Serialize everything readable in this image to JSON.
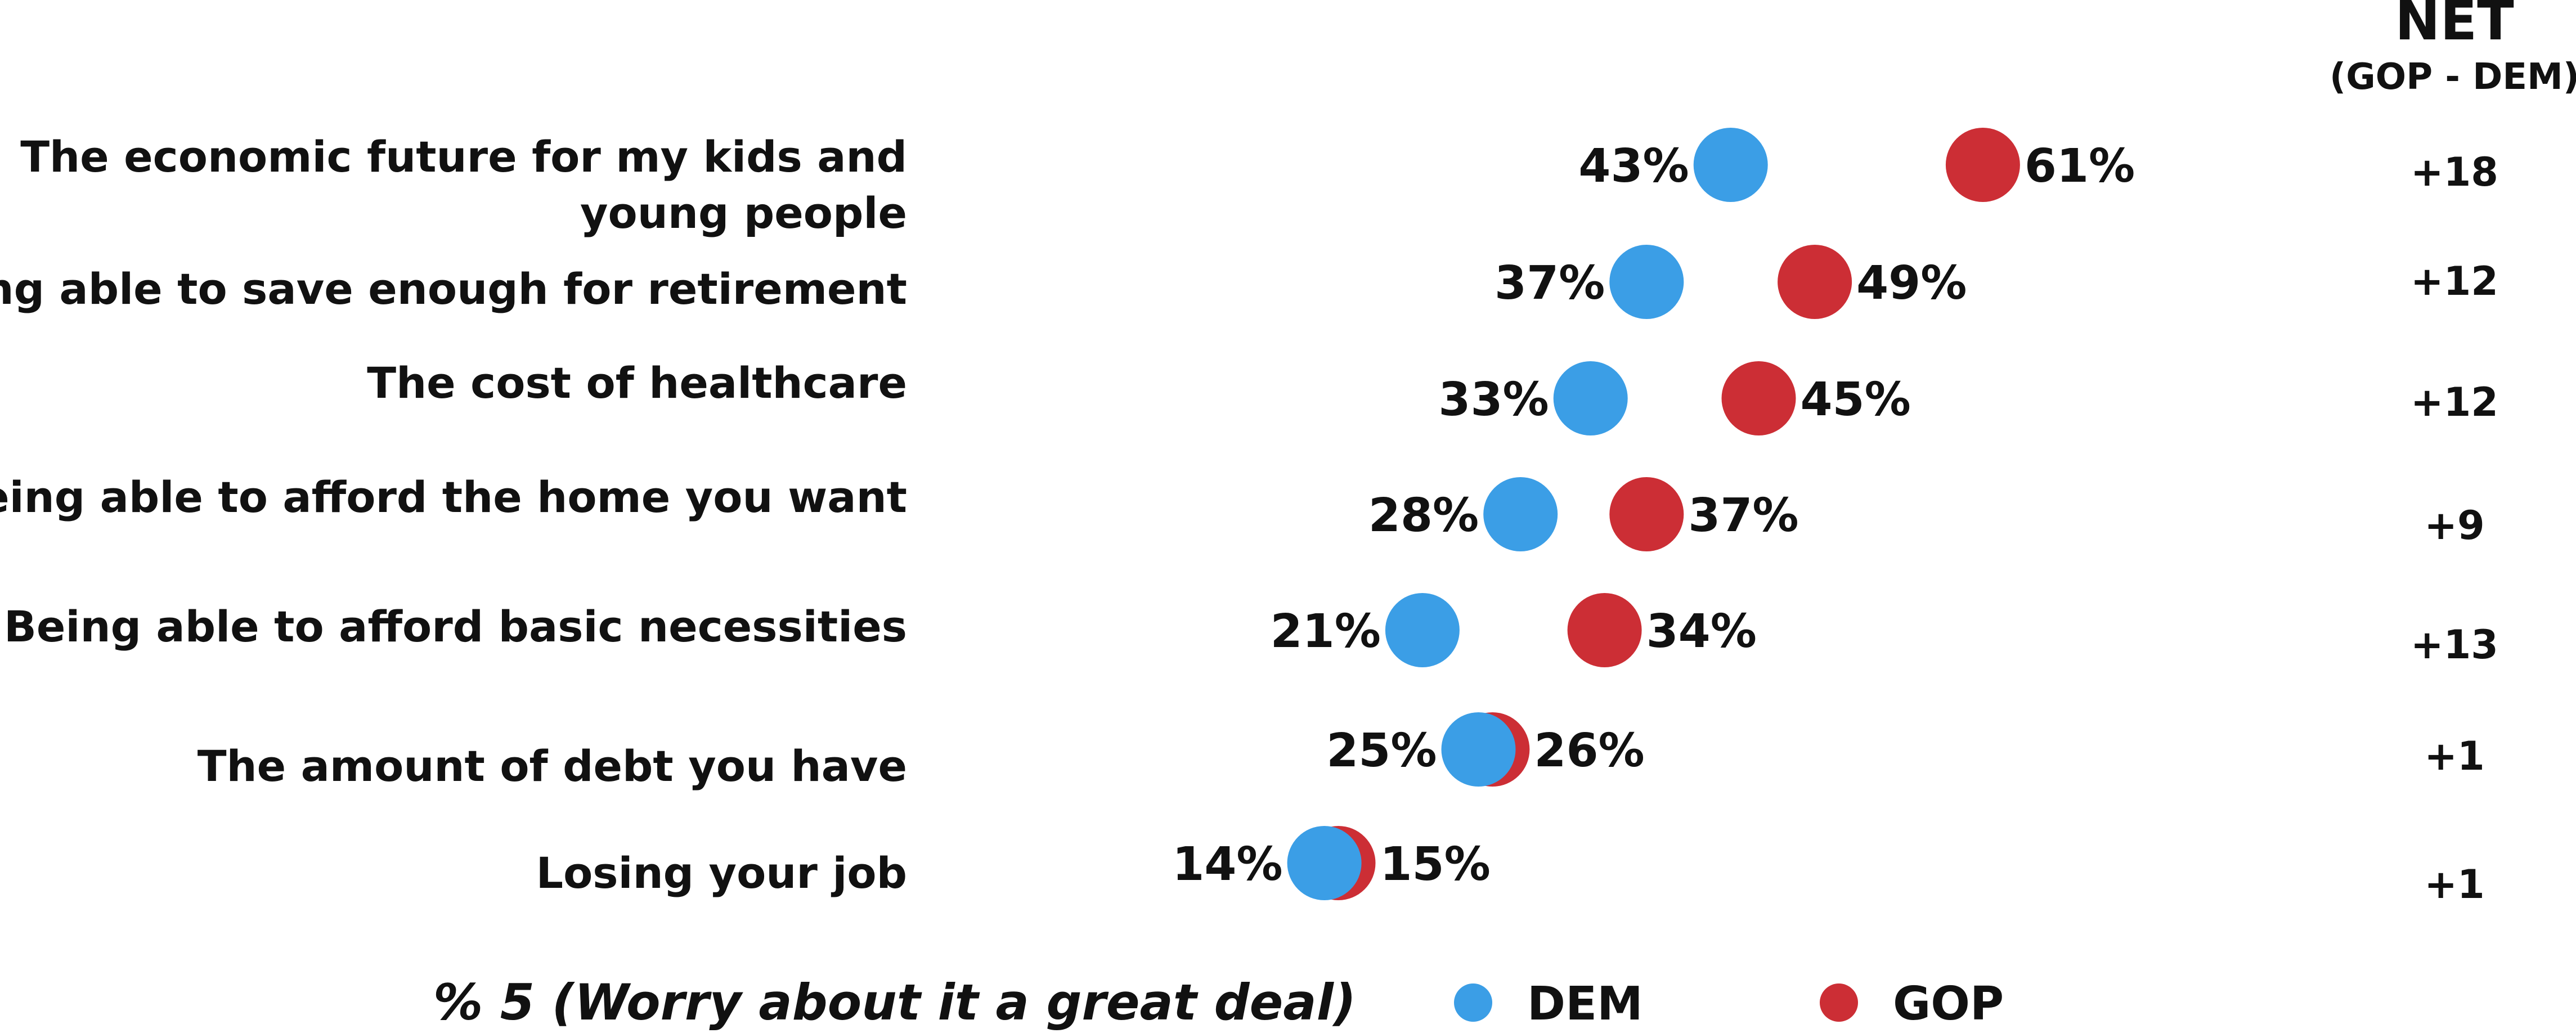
{
  "chart_data": {
    "type": "scatter",
    "categories": [
      [
        "The economic future for my kids and",
        "young people"
      ],
      [
        "Being able to save enough for retirement"
      ],
      [
        "The cost of healthcare"
      ],
      [
        "Being able to afford the home you want"
      ],
      [
        "Being able to afford basic necessities"
      ],
      [
        "The amount of debt you have"
      ],
      [
        "Losing your job"
      ]
    ],
    "series": [
      {
        "name": "DEM",
        "color": "#3b9ee6",
        "values": [
          43,
          37,
          33,
          28,
          21,
          25,
          14
        ],
        "labels": [
          "43%",
          "37%",
          "33%",
          "28%",
          "21%",
          "25%",
          "14%"
        ]
      },
      {
        "name": "GOP",
        "color": "#cc2e35",
        "values": [
          61,
          49,
          45,
          37,
          34,
          26,
          15
        ],
        "labels": [
          "61%",
          "49%",
          "45%",
          "37%",
          "34%",
          "26%",
          "15%"
        ]
      }
    ],
    "net": {
      "title": "NET",
      "subtitle": "(GOP - DEM)",
      "values": [
        "+18",
        "+12",
        "+12",
        "+9",
        "+13",
        "+1",
        "+1"
      ]
    },
    "footnote": "% 5 (Worry about it a great deal)",
    "legend": {
      "placement": "bottom",
      "items": [
        {
          "label": "DEM",
          "color": "#3b9ee6"
        },
        {
          "label": "GOP",
          "color": "#cc2e35"
        }
      ]
    }
  }
}
